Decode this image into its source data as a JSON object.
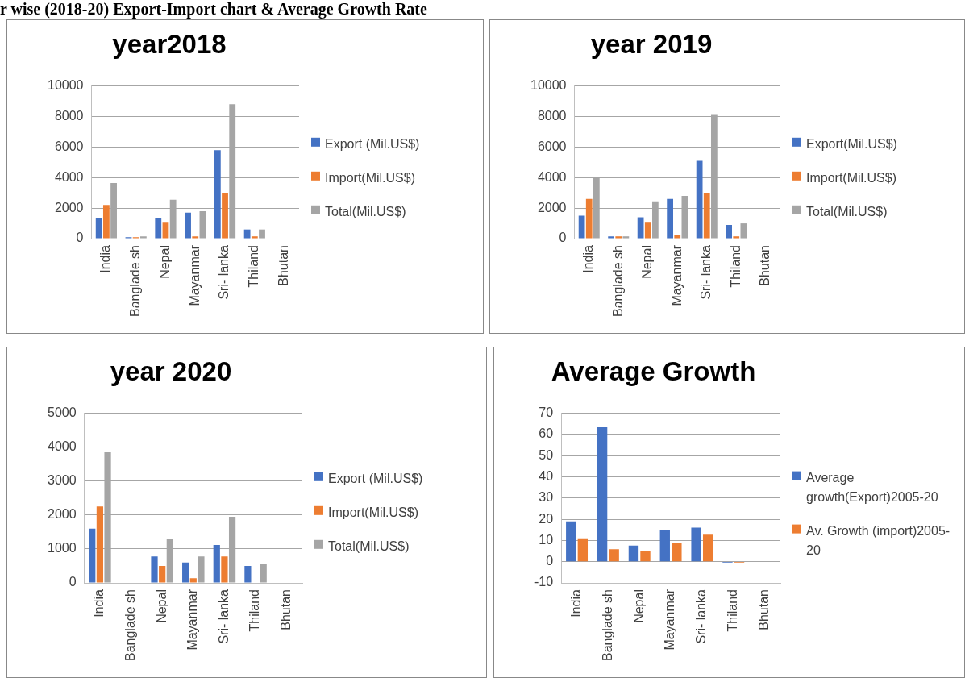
{
  "chart_data": [
    {
      "type": "bar",
      "title": "year2018",
      "annotations": [
        "r wise (2018-20) Export-Import chart & Average Growth Rate"
      ],
      "categories": [
        "India",
        "Banglade sh",
        "Nepal",
        "Mayanmar",
        "Sri- lanka",
        "Thiland",
        "Bhutan"
      ],
      "series": [
        {
          "name": "Export (Mil.US$)",
          "color": "#4472c4",
          "values": [
            1350,
            100,
            1350,
            1700,
            5800,
            600,
            0
          ]
        },
        {
          "name": "Import(Mil.US$)",
          "color": "#ed7d31",
          "values": [
            2200,
            100,
            1100,
            150,
            3000,
            150,
            0
          ]
        },
        {
          "name": "Total(Mil.US$)",
          "color": "#a5a5a5",
          "values": [
            3650,
            150,
            2550,
            1800,
            8800,
            600,
            0
          ]
        }
      ],
      "ylim": [
        0,
        10000
      ],
      "yticks": [
        0,
        2000,
        4000,
        6000,
        8000,
        10000
      ],
      "grid": "y",
      "legend": "right"
    },
    {
      "type": "bar",
      "title": "year 2019",
      "categories": [
        "India",
        "Banglade sh",
        "Nepal",
        "Mayanmar",
        "Sri- lanka",
        "Thiland",
        "Bhutan"
      ],
      "series": [
        {
          "name": "Export(Mil.US$)",
          "color": "#4472c4",
          "values": [
            1500,
            150,
            1400,
            2600,
            5100,
            900,
            0
          ]
        },
        {
          "name": "Import(Mil.US$)",
          "color": "#ed7d31",
          "values": [
            2600,
            150,
            1100,
            250,
            3000,
            150,
            0
          ]
        },
        {
          "name": "Total(Mil.US$)",
          "color": "#a5a5a5",
          "values": [
            4000,
            150,
            2450,
            2800,
            8100,
            1000,
            0
          ]
        }
      ],
      "ylim": [
        0,
        10000
      ],
      "yticks": [
        0,
        2000,
        4000,
        6000,
        8000,
        10000
      ],
      "grid": "y",
      "legend": "right"
    },
    {
      "type": "bar",
      "title": "year 2020",
      "categories": [
        "India",
        "Banglade sh",
        "Nepal",
        "Mayanmar",
        "Sri- lanka",
        "Thiland",
        "Bhutan"
      ],
      "series": [
        {
          "name": "Export (Mil.US$)",
          "color": "#4472c4",
          "values": [
            1600,
            0,
            780,
            600,
            1120,
            500,
            0
          ]
        },
        {
          "name": "Import(Mil.US$)",
          "color": "#ed7d31",
          "values": [
            2250,
            0,
            500,
            140,
            780,
            0,
            0
          ]
        },
        {
          "name": "Total(Mil.US$)",
          "color": "#a5a5a5",
          "values": [
            3850,
            0,
            1300,
            780,
            1950,
            550,
            0
          ]
        }
      ],
      "ylim": [
        0,
        5000
      ],
      "yticks": [
        0,
        1000,
        2000,
        3000,
        4000,
        5000
      ],
      "grid": "y",
      "legend": "right"
    },
    {
      "type": "bar",
      "title": "Average Growth",
      "categories": [
        "India",
        "Banglade sh",
        "Nepal",
        "Mayanmar",
        "Sri- lanka",
        "Thiland",
        "Bhutan"
      ],
      "series": [
        {
          "name": "Average growth(Export)2005-20",
          "color": "#4472c4",
          "values": [
            19,
            63.4,
            7.6,
            14.9,
            16.1,
            -0.5,
            0
          ]
        },
        {
          "name": "Av. Growth (import)2005-20",
          "color": "#ed7d31",
          "values": [
            11,
            5.9,
            4.8,
            8.9,
            12.7,
            -0.5,
            0
          ]
        }
      ],
      "ylim": [
        -10,
        70
      ],
      "yticks": [
        -10,
        0,
        10,
        20,
        30,
        40,
        50,
        60,
        70
      ],
      "grid": "y",
      "legend": "right"
    }
  ]
}
